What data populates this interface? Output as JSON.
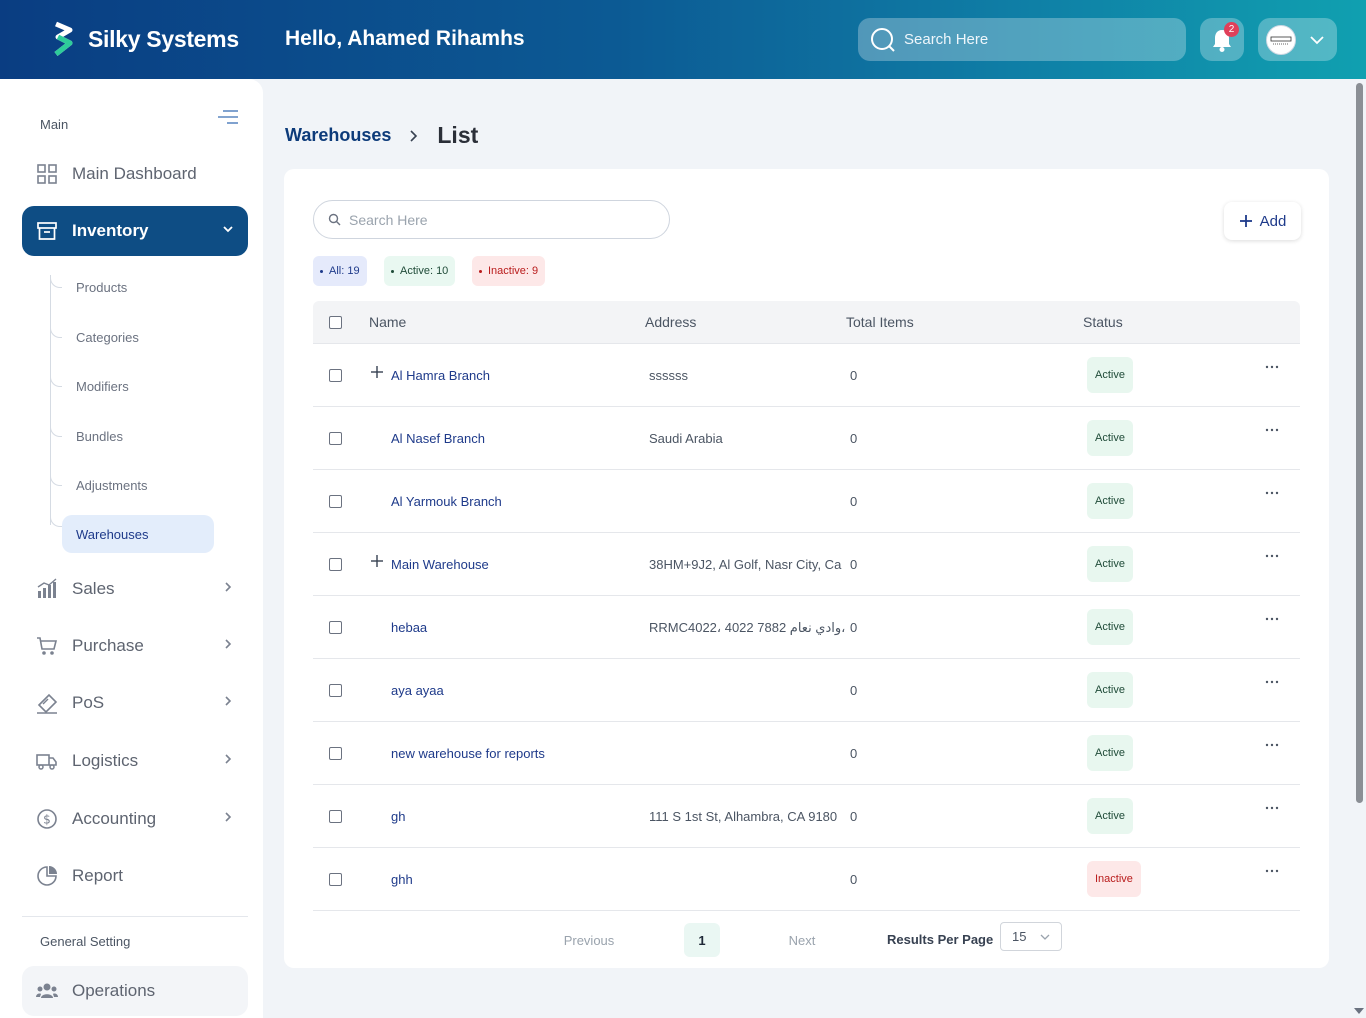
{
  "brand": {
    "name": "Silky Systems"
  },
  "header": {
    "greeting": "Hello, Ahamed Rihamhs",
    "search_placeholder": "Search Here",
    "notification_count": "2"
  },
  "sidebar": {
    "section_main": "Main",
    "section_general": "General Setting",
    "items": {
      "dashboard": "Main Dashboard",
      "inventory": "Inventory",
      "sales": "Sales",
      "purchase": "Purchase",
      "pos": "PoS",
      "logistics": "Logistics",
      "accounting": "Accounting",
      "report": "Report",
      "operations": "Operations"
    },
    "inventory_sub": {
      "products": "Products",
      "categories": "Categories",
      "modifiers": "Modifiers",
      "bundles": "Bundles",
      "adjustments": "Adjustments",
      "warehouses": "Warehouses"
    }
  },
  "breadcrumb": {
    "parent": "Warehouses",
    "current": "List"
  },
  "list": {
    "search_placeholder": "Search Here",
    "add_label": "Add",
    "chips": {
      "all": "All: 19",
      "active": "Active: 10",
      "inactive": "Inactive: 9"
    },
    "columns": {
      "name": "Name",
      "address": "Address",
      "total": "Total Items",
      "status": "Status"
    },
    "rows": [
      {
        "name": "Al Hamra Branch",
        "address": "ssssss",
        "total": "0",
        "status": "Active",
        "expandable": true
      },
      {
        "name": "Al Nasef Branch",
        "address": "Saudi Arabia",
        "total": "0",
        "status": "Active",
        "expandable": false
      },
      {
        "name": "Al Yarmouk Branch",
        "address": "",
        "total": "0",
        "status": "Active",
        "expandable": false
      },
      {
        "name": "Main Warehouse",
        "address": "38HM+9J2, Al Golf, Nasr City, Ca",
        "total": "0",
        "status": "Active",
        "expandable": true
      },
      {
        "name": "hebaa",
        "address": "RRMC4022، 4022 7882 وادي نعام،",
        "total": "0",
        "status": "Active",
        "expandable": false
      },
      {
        "name": "aya ayaa",
        "address": "",
        "total": "0",
        "status": "Active",
        "expandable": false
      },
      {
        "name": "new warehouse for reports",
        "address": "",
        "total": "0",
        "status": "Active",
        "expandable": false
      },
      {
        "name": "gh",
        "address": "111 S 1st St, Alhambra, CA 9180",
        "total": "0",
        "status": "Active",
        "expandable": false
      },
      {
        "name": "ghh",
        "address": "",
        "total": "0",
        "status": "Inactive",
        "expandable": false
      }
    ]
  },
  "pager": {
    "previous": "Previous",
    "page": "1",
    "next": "Next",
    "rpp_label": "Results Per Page",
    "rpp_value": "15"
  },
  "colors": {
    "primary": "#0e4d84",
    "link": "#1e3a8a",
    "active_bg": "#e8f7ef",
    "inactive_bg": "#fde8e8"
  }
}
